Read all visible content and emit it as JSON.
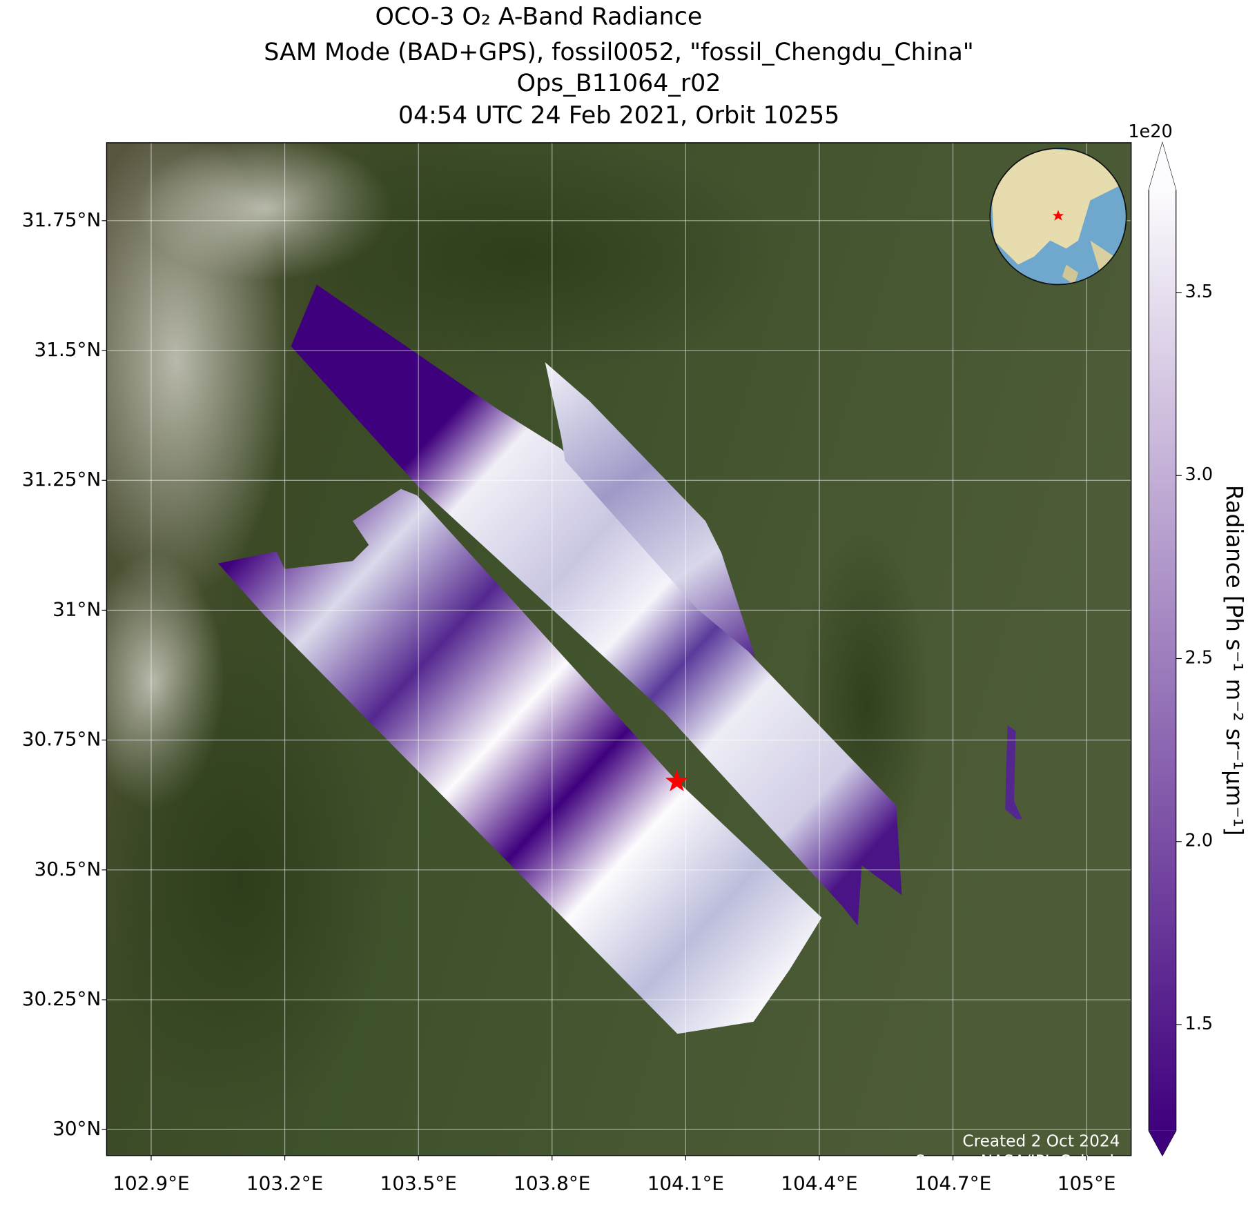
{
  "chart_data": {
    "type": "map",
    "title": [
      "OCO-3 O₂ A-Band Radiance",
      "SAM Mode (BAD+GPS), fossil0052, \"fossil_Chengdu_China\"",
      "Ops_B11064_r02",
      "04:54 UTC 24 Feb 2021, Orbit 10255"
    ],
    "xlim": [
      102.8,
      105.1
    ],
    "ylim": [
      29.95,
      31.9
    ],
    "xticks": [
      {
        "value": 102.9,
        "label": "102.9°E"
      },
      {
        "value": 103.2,
        "label": "103.2°E"
      },
      {
        "value": 103.5,
        "label": "103.5°E"
      },
      {
        "value": 103.8,
        "label": "103.8°E"
      },
      {
        "value": 104.1,
        "label": "104.1°E"
      },
      {
        "value": 104.4,
        "label": "104.4°E"
      },
      {
        "value": 104.7,
        "label": "104.7°E"
      },
      {
        "value": 105,
        "label": "105°E"
      }
    ],
    "yticks": [
      {
        "value": 30,
        "label": "30°N"
      },
      {
        "value": 30.25,
        "label": "30.25°N"
      },
      {
        "value": 30.5,
        "label": "30.5°N"
      },
      {
        "value": 30.75,
        "label": "30.75°N"
      },
      {
        "value": 31,
        "label": "31°N"
      },
      {
        "value": 31.25,
        "label": "31.25°N"
      },
      {
        "value": 31.5,
        "label": "31.5°N"
      },
      {
        "value": 31.75,
        "label": "31.75°N"
      }
    ],
    "grid": true,
    "target": {
      "lon": 104.08,
      "lat": 30.67,
      "color": "#ff0000"
    },
    "colorbar": {
      "label": "Radiance [Ph s⁻¹ m⁻² sr⁻¹μm⁻¹]",
      "scale_label": "1e20",
      "lim": [
        1.21,
        3.78
      ],
      "ticks": [
        1.5,
        {
          "value": 2,
          "label": "2.0"
        },
        2.5,
        {
          "value": 3,
          "label": "3.0"
        },
        3.5
      ],
      "colors": [
        "#3f007d",
        "#fcfbfd"
      ]
    },
    "notes": [
      "Created 2 Oct 2024",
      "Source: NASA/JPL-Caltech"
    ]
  }
}
